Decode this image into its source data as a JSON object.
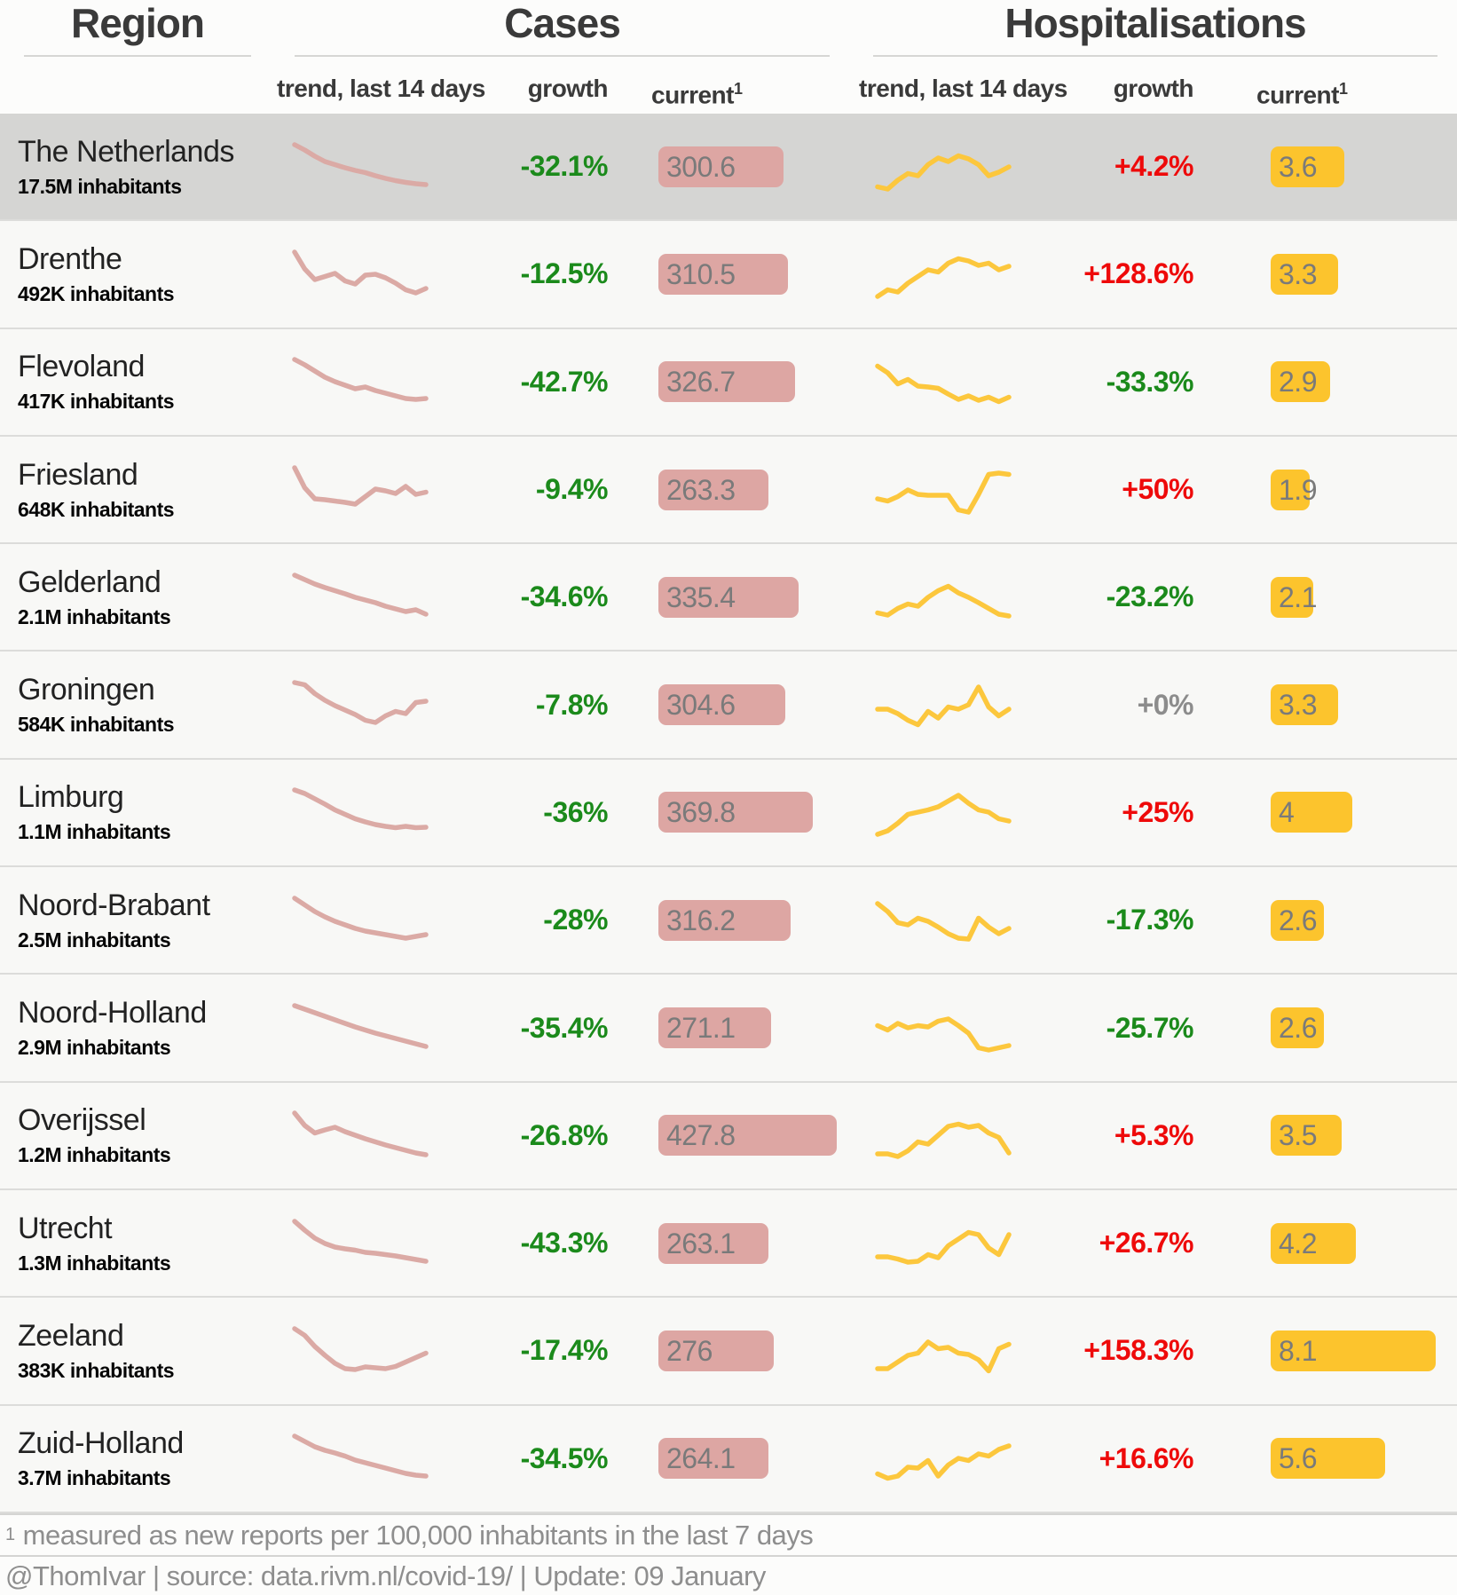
{
  "header": {
    "region_title": "Region",
    "cases_title": "Cases",
    "hosp_title": "Hospitalisations",
    "trend_label": "trend, last 14 days",
    "growth_label": "growth",
    "current_label": "current",
    "current_sup": "1"
  },
  "colors": {
    "growth_green": "#1b8a1b",
    "growth_red": "#ee0a0a",
    "growth_gray": "#8c8c8c",
    "cases_bar": "#dda6a3",
    "cases_line": "#dbaaa5",
    "hosp_bar": "#fcc42d",
    "hosp_line": "#fcc73d",
    "highlight_row": "#d5d5d3"
  },
  "chart_data": {
    "type": "table",
    "columns": [
      "Region",
      "Cases trend last 14 days",
      "Cases growth",
      "Cases current per 100k (7 days)",
      "Hospitalisations trend last 14 days",
      "Hospitalisations growth",
      "Hospitalisations current per 100k (7 days)"
    ],
    "rows": [
      {
        "region": "The Netherlands",
        "inhabitants": "17.5M inhabitants",
        "highlight": true,
        "cases": {
          "growth": "-32.1%",
          "growth_color": "green",
          "current": "300.6",
          "value": 300.6,
          "trend": [
            100,
            88,
            74,
            62,
            55,
            48,
            42,
            37,
            30,
            24,
            19,
            15,
            12,
            10
          ]
        },
        "hosp": {
          "growth": "+4.2%",
          "growth_color": "red",
          "current": "3.6",
          "value": 3.6,
          "trend": [
            5,
            0,
            20,
            35,
            30,
            55,
            70,
            62,
            75,
            68,
            55,
            30,
            38,
            50
          ]
        }
      },
      {
        "region": "Drenthe",
        "inhabitants": "492K inhabitants",
        "highlight": false,
        "cases": {
          "growth": "-12.5%",
          "growth_color": "green",
          "current": "310.5",
          "value": 310.5,
          "trend": [
            100,
            62,
            38,
            45,
            52,
            35,
            28,
            48,
            50,
            42,
            30,
            15,
            8,
            18
          ]
        },
        "hosp": {
          "growth": "+128.6%",
          "growth_color": "red",
          "current": "3.3",
          "value": 3.3,
          "trend": [
            0,
            15,
            10,
            30,
            45,
            60,
            55,
            75,
            85,
            80,
            70,
            75,
            60,
            68
          ]
        }
      },
      {
        "region": "Flevoland",
        "inhabitants": "417K inhabitants",
        "highlight": false,
        "cases": {
          "growth": "-42.7%",
          "growth_color": "green",
          "current": "326.7",
          "value": 326.7,
          "trend": [
            100,
            88,
            74,
            60,
            50,
            42,
            34,
            38,
            30,
            24,
            18,
            12,
            10,
            12
          ]
        },
        "hosp": {
          "growth": "-33.3%",
          "growth_color": "green",
          "current": "2.9",
          "value": 2.9,
          "trend": [
            85,
            70,
            45,
            55,
            40,
            38,
            35,
            22,
            10,
            18,
            8,
            15,
            5,
            15
          ]
        }
      },
      {
        "region": "Friesland",
        "inhabitants": "648K inhabitants",
        "highlight": false,
        "cases": {
          "growth": "-9.4%",
          "growth_color": "green",
          "current": "263.3",
          "value": 263.3,
          "trend": [
            100,
            55,
            30,
            28,
            25,
            22,
            18,
            35,
            52,
            48,
            42,
            58,
            40,
            45
          ]
        },
        "hosp": {
          "growth": "+50%",
          "growth_color": "red",
          "current": "1.9",
          "value": 1.9,
          "trend": [
            30,
            25,
            35,
            50,
            40,
            38,
            38,
            38,
            5,
            0,
            40,
            85,
            88,
            85
          ]
        }
      },
      {
        "region": "Gelderland",
        "inhabitants": "2.1M inhabitants",
        "highlight": false,
        "cases": {
          "growth": "-34.6%",
          "growth_color": "green",
          "current": "335.4",
          "value": 335.4,
          "trend": [
            100,
            90,
            80,
            72,
            65,
            58,
            50,
            44,
            38,
            30,
            24,
            18,
            22,
            12
          ]
        },
        "hosp": {
          "growth": "-23.2%",
          "growth_color": "green",
          "current": "2.1",
          "value": 2.1,
          "trend": [
            15,
            10,
            25,
            35,
            30,
            50,
            65,
            75,
            60,
            50,
            38,
            25,
            12,
            8
          ]
        }
      },
      {
        "region": "Groningen",
        "inhabitants": "584K inhabitants",
        "highlight": false,
        "cases": {
          "growth": "-7.8%",
          "growth_color": "green",
          "current": "304.6",
          "value": 304.6,
          "trend": [
            100,
            95,
            75,
            60,
            48,
            38,
            28,
            15,
            10,
            25,
            35,
            30,
            55,
            58
          ]
        },
        "hosp": {
          "growth": "+0%",
          "growth_color": "gray",
          "current": "3.3",
          "value": 3.3,
          "trend": [
            40,
            40,
            30,
            15,
            5,
            35,
            20,
            45,
            40,
            50,
            90,
            45,
            25,
            40
          ]
        }
      },
      {
        "region": "Limburg",
        "inhabitants": "1.1M inhabitants",
        "highlight": false,
        "cases": {
          "growth": "-36%",
          "growth_color": "green",
          "current": "369.8",
          "value": 369.8,
          "trend": [
            100,
            92,
            80,
            68,
            55,
            45,
            35,
            28,
            22,
            18,
            15,
            18,
            15,
            16
          ]
        },
        "hosp": {
          "growth": "+25%",
          "growth_color": "red",
          "current": "4",
          "value": 4,
          "trend": [
            0,
            8,
            25,
            45,
            50,
            55,
            62,
            75,
            88,
            70,
            55,
            50,
            35,
            30
          ]
        }
      },
      {
        "region": "Noord-Brabant",
        "inhabitants": "2.5M inhabitants",
        "highlight": false,
        "cases": {
          "growth": "-28%",
          "growth_color": "green",
          "current": "316.2",
          "value": 316.2,
          "trend": [
            100,
            85,
            70,
            58,
            48,
            40,
            32,
            26,
            22,
            18,
            14,
            10,
            14,
            18
          ]
        },
        "hosp": {
          "growth": "-17.3%",
          "growth_color": "green",
          "current": "2.6",
          "value": 2.6,
          "trend": [
            88,
            70,
            45,
            40,
            55,
            48,
            35,
            20,
            10,
            8,
            55,
            35,
            20,
            32
          ]
        }
      },
      {
        "region": "Noord-Holland",
        "inhabitants": "2.9M inhabitants",
        "highlight": false,
        "cases": {
          "growth": "-35.4%",
          "growth_color": "green",
          "current": "271.1",
          "value": 271.1,
          "trend": [
            100,
            92,
            84,
            76,
            68,
            60,
            52,
            45,
            38,
            32,
            26,
            20,
            14,
            8
          ]
        },
        "hosp": {
          "growth": "-25.7%",
          "growth_color": "green",
          "current": "2.6",
          "value": 2.6,
          "trend": [
            55,
            45,
            60,
            50,
            55,
            52,
            65,
            70,
            55,
            38,
            5,
            0,
            5,
            10
          ]
        }
      },
      {
        "region": "Overijssel",
        "inhabitants": "1.2M inhabitants",
        "highlight": false,
        "cases": {
          "growth": "-26.8%",
          "growth_color": "green",
          "current": "427.8",
          "value": 427.8,
          "trend": [
            100,
            72,
            55,
            62,
            68,
            58,
            50,
            42,
            35,
            28,
            22,
            16,
            10,
            6
          ]
        },
        "hosp": {
          "growth": "+5.3%",
          "growth_color": "red",
          "current": "3.5",
          "value": 3.5,
          "trend": [
            8,
            8,
            2,
            15,
            35,
            30,
            50,
            70,
            75,
            68,
            72,
            55,
            45,
            10
          ]
        }
      },
      {
        "region": "Utrecht",
        "inhabitants": "1.3M inhabitants",
        "highlight": false,
        "cases": {
          "growth": "-43.3%",
          "growth_color": "green",
          "current": "263.1",
          "value": 263.1,
          "trend": [
            100,
            80,
            62,
            50,
            42,
            38,
            35,
            30,
            28,
            25,
            22,
            18,
            14,
            10
          ]
        },
        "hosp": {
          "growth": "+26.7%",
          "growth_color": "red",
          "current": "4.2",
          "value": 4.2,
          "trend": [
            20,
            20,
            15,
            8,
            10,
            25,
            18,
            45,
            60,
            75,
            70,
            40,
            25,
            70
          ]
        }
      },
      {
        "region": "Zeeland",
        "inhabitants": "383K inhabitants",
        "highlight": false,
        "cases": {
          "growth": "-17.4%",
          "growth_color": "green",
          "current": "276",
          "value": 276,
          "trend": [
            100,
            85,
            60,
            40,
            22,
            10,
            8,
            14,
            12,
            10,
            15,
            25,
            35,
            45
          ]
        },
        "hosp": {
          "growth": "+158.3%",
          "growth_color": "red",
          "current": "8.1",
          "value": 8.1,
          "trend": [
            10,
            10,
            25,
            40,
            45,
            70,
            55,
            58,
            45,
            42,
            30,
            5,
            55,
            65
          ]
        }
      },
      {
        "region": "Zuid-Holland",
        "inhabitants": "3.7M inhabitants",
        "highlight": false,
        "cases": {
          "growth": "-34.5%",
          "growth_color": "green",
          "current": "264.1",
          "value": 264.1,
          "trend": [
            100,
            88,
            76,
            68,
            62,
            55,
            46,
            40,
            34,
            28,
            22,
            16,
            12,
            10
          ]
        },
        "hosp": {
          "growth": "+16.6%",
          "growth_color": "red",
          "current": "5.6",
          "value": 5.6,
          "trend": [
            15,
            5,
            10,
            30,
            28,
            45,
            10,
            35,
            50,
            45,
            60,
            55,
            70,
            78
          ]
        }
      }
    ]
  },
  "footer": {
    "note_sup": "1",
    "note_text": "measured as new reports per 100,000 inhabitants in the last 7 days",
    "attribution": "@ThomIvar | source: data.rivm.nl/covid-19/ | Update: 09 January"
  }
}
